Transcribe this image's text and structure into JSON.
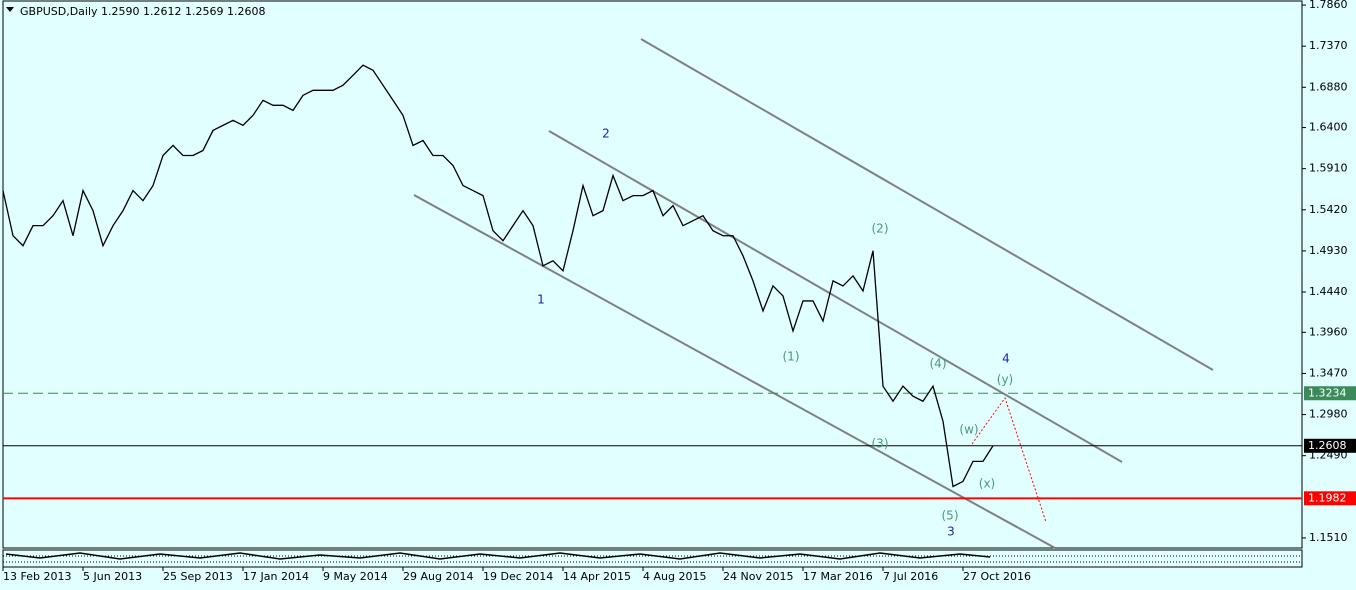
{
  "chart_data": {
    "type": "line",
    "title": "GBPUSD,Daily  1.2590 1.2612 1.2569 1.2608",
    "categories": [
      "13 Feb 2013",
      null,
      null,
      null,
      null,
      null,
      null,
      null,
      "5 Jun 2013",
      null,
      null,
      null,
      null,
      null,
      null,
      null,
      "25 Sep 2013",
      null,
      null,
      null,
      null,
      null,
      null,
      null,
      "17 Jan 2014",
      null,
      null,
      null,
      null,
      null,
      null,
      null,
      "9 May 2014",
      null,
      null,
      null,
      null,
      null,
      null,
      null,
      "29 Aug 2014",
      null,
      null,
      null,
      null,
      null,
      null,
      null,
      "19 Dec 2014",
      null,
      null,
      null,
      null,
      null,
      null,
      null,
      "14 Apr 2015",
      null,
      null,
      null,
      null,
      null,
      null,
      null,
      "4 Aug 2015",
      null,
      null,
      null,
      null,
      null,
      null,
      null,
      "24 Nov 2015",
      null,
      null,
      null,
      null,
      null,
      null,
      null,
      "17 Mar 2016",
      null,
      null,
      null,
      null,
      null,
      null,
      null,
      "7 Jul 2016",
      null,
      null,
      null,
      null,
      null,
      null,
      null,
      "27 Oct 2016",
      null,
      null,
      null
    ],
    "series": [
      {
        "name": "GBPUSD",
        "color": "#000000",
        "values": [
          1.5649,
          1.5111,
          1.4992,
          1.5231,
          1.5231,
          1.535,
          1.5529,
          1.5111,
          1.5649,
          1.541,
          1.4992,
          1.5231,
          1.541,
          1.5649,
          1.5529,
          1.5709,
          1.6067,
          1.6187,
          1.6067,
          1.6067,
          1.6127,
          1.6366,
          1.6426,
          1.6486,
          1.6426,
          1.6545,
          1.6725,
          1.6665,
          1.6665,
          1.6605,
          1.6784,
          1.6844,
          1.6844,
          1.6844,
          1.6904,
          1.7023,
          1.7143,
          1.7083,
          1.6904,
          1.6725,
          1.6545,
          1.6187,
          1.6246,
          1.6067,
          1.6067,
          1.5948,
          1.5709,
          1.5649,
          1.5589,
          1.5171,
          1.5051,
          1.5231,
          1.541,
          1.5231,
          1.4752,
          1.4812,
          1.4693,
          1.5171,
          1.5709,
          1.535,
          1.541,
          1.5828,
          1.5529,
          1.5589,
          1.5589,
          1.5649,
          1.535,
          1.547,
          1.5231,
          1.529,
          1.535,
          1.5171,
          1.5111,
          1.5111,
          1.4872,
          1.4573,
          1.4215,
          1.4513,
          1.4394,
          1.3976,
          1.4334,
          1.4334,
          1.4095,
          1.4573,
          1.4513,
          1.4633,
          1.4454,
          1.4932,
          1.3318,
          1.3139,
          1.3318,
          1.3199,
          1.3139,
          1.3318,
          1.29,
          1.2123,
          1.2183,
          1.2422,
          1.2422,
          1.2608
        ]
      }
    ],
    "ylim": [
      1.139,
      1.792
    ],
    "yticks": [
      {
        "value": 1.786,
        "label": "1.7860"
      },
      {
        "value": 1.737,
        "label": "1.7370"
      },
      {
        "value": 1.688,
        "label": "1.6880"
      },
      {
        "value": 1.64,
        "label": "1.6400"
      },
      {
        "value": 1.591,
        "label": "1.5910"
      },
      {
        "value": 1.542,
        "label": "1.5420"
      },
      {
        "value": 1.493,
        "label": "1.4930"
      },
      {
        "value": 1.444,
        "label": "1.4440"
      },
      {
        "value": 1.396,
        "label": "1.3960"
      },
      {
        "value": 1.347,
        "label": "1.3470"
      },
      {
        "value": 1.298,
        "label": "1.2980"
      },
      {
        "value": 1.249,
        "label": "1.2490"
      },
      {
        "value": 1.151,
        "label": "1.1510"
      }
    ],
    "levels": [
      {
        "value": 1.3234,
        "color": "#3a8a5a",
        "dashed": true
      },
      {
        "value": 1.2608,
        "color": "#000000",
        "dashed": false
      },
      {
        "value": 1.1982,
        "color": "#ff0000",
        "dashed": false
      }
    ],
    "annotations": [
      {
        "text": "1",
        "color": "#2222aa"
      },
      {
        "text": "2",
        "color": "#2222aa"
      },
      {
        "text": "(1)",
        "color": "#4a9a78"
      },
      {
        "text": "(2)",
        "color": "#4a9a78"
      },
      {
        "text": "(3)",
        "color": "#4a9a78"
      },
      {
        "text": "(4)",
        "color": "#4a9a78"
      },
      {
        "text": "(5)",
        "color": "#4a9a78"
      },
      {
        "text": "3",
        "color": "#2222aa"
      },
      {
        "text": "4",
        "color": "#2222aa"
      },
      {
        "text": "(w)",
        "color": "#4a9a78"
      },
      {
        "text": "(x)",
        "color": "#4a9a78"
      },
      {
        "text": "(y)",
        "color": "#4a9a78"
      }
    ]
  }
}
